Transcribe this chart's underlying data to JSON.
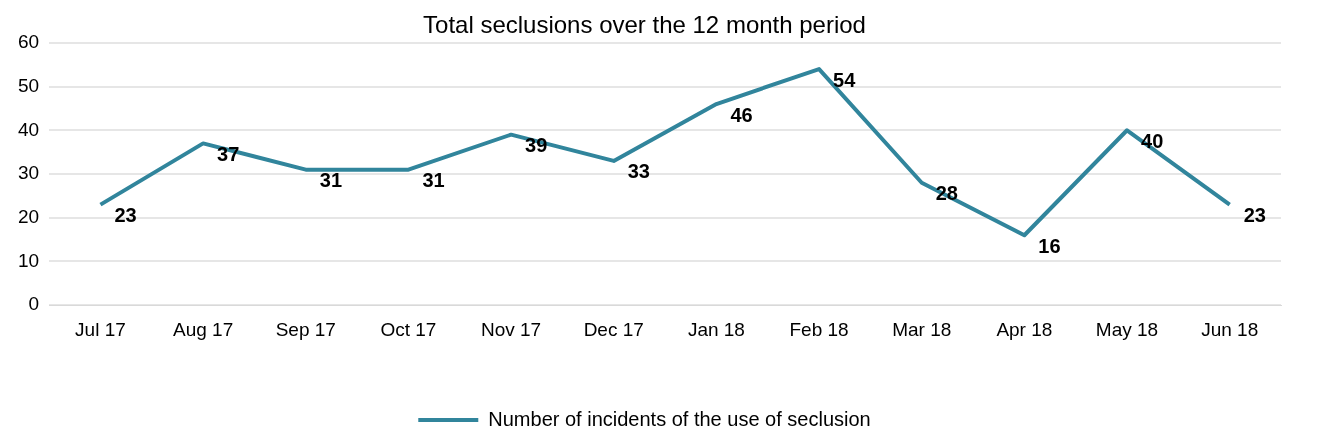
{
  "chart_data": {
    "type": "line",
    "title": "Total seclusions over the 12 month period",
    "categories": [
      "Jul 17",
      "Aug 17",
      "Sep 17",
      "Oct 17",
      "Nov 17",
      "Dec 17",
      "Jan 18",
      "Feb 18",
      "Mar 18",
      "Apr 18",
      "May 18",
      "Jun 18"
    ],
    "series": [
      {
        "name": "Number of incidents of the use of seclusion",
        "color": "#31859c",
        "values": [
          23,
          37,
          31,
          31,
          39,
          33,
          46,
          54,
          28,
          16,
          40,
          23
        ]
      }
    ],
    "ylim": [
      0,
      60
    ],
    "yticks": [
      0,
      10,
      20,
      30,
      40,
      50,
      60
    ],
    "grid": "y",
    "legend": "bottom",
    "data_labels": true,
    "marker": "none",
    "line_style": "solid"
  }
}
